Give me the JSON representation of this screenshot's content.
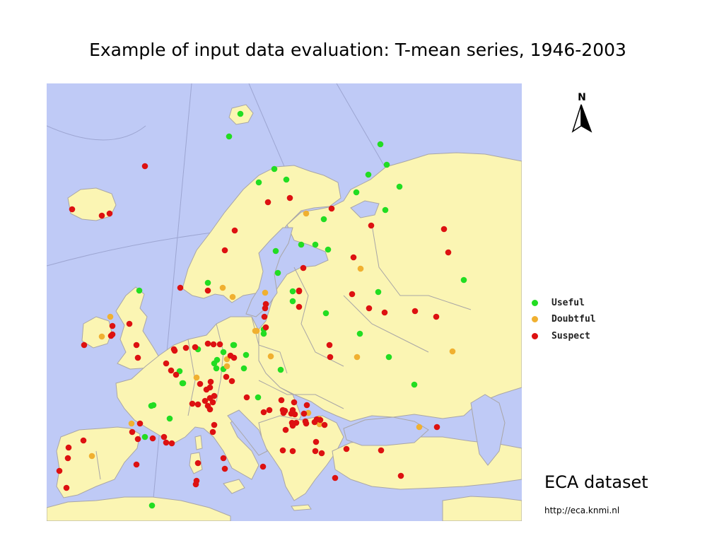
{
  "title": "Example of input data evaluation: T-mean series, 1946-2003",
  "north_label": "N",
  "legend": [
    {
      "label": "Useful",
      "color": "#22dd22"
    },
    {
      "label": "Doubtful",
      "color": "#f0b030"
    },
    {
      "label": "Suspect",
      "color": "#dd1111"
    }
  ],
  "dataset_label": "ECA dataset",
  "dataset_url": "http://eca.knmi.nl",
  "colors": {
    "sea": "#bfcaf6",
    "land": "#fbf5b3",
    "border": "#a9a6a6",
    "useful": "#22dd22",
    "doubtful": "#f0b030",
    "suspect": "#dd1111"
  },
  "stations": {
    "useful": [
      [
        274,
        43
      ],
      [
        258,
        75
      ],
      [
        322,
        121
      ],
      [
        300,
        140
      ],
      [
        339,
        136
      ],
      [
        472,
        86
      ],
      [
        481,
        115
      ],
      [
        455,
        129
      ],
      [
        438,
        154
      ],
      [
        499,
        146
      ],
      [
        479,
        179
      ],
      [
        392,
        192
      ],
      [
        324,
        237
      ],
      [
        360,
        228
      ],
      [
        380,
        228
      ],
      [
        398,
        235
      ],
      [
        327,
        268
      ],
      [
        131,
        293
      ],
      [
        228,
        282
      ],
      [
        348,
        294
      ],
      [
        348,
        308
      ],
      [
        395,
        325
      ],
      [
        307,
        348
      ],
      [
        307,
        354
      ],
      [
        469,
        295
      ],
      [
        443,
        354
      ],
      [
        590,
        278
      ],
      [
        264,
        370
      ],
      [
        250,
        380
      ],
      [
        282,
        384
      ],
      [
        214,
        376
      ],
      [
        240,
        403
      ],
      [
        250,
        404
      ],
      [
        265,
        370
      ],
      [
        241,
        391
      ],
      [
        237,
        396
      ],
      [
        192,
        424
      ],
      [
        188,
        407
      ],
      [
        193,
        424
      ],
      [
        279,
        403
      ],
      [
        299,
        444
      ],
      [
        331,
        405
      ],
      [
        484,
        387
      ],
      [
        520,
        426
      ],
      [
        148,
        456
      ],
      [
        151,
        455
      ],
      [
        174,
        474
      ],
      [
        139,
        500
      ],
      [
        149,
        597
      ]
    ],
    "doubtful": [
      [
        367,
        184
      ],
      [
        444,
        262
      ],
      [
        249,
        289
      ],
      [
        263,
        302
      ],
      [
        309,
        296
      ],
      [
        90,
        330
      ],
      [
        78,
        358
      ],
      [
        297,
        350
      ],
      [
        255,
        390
      ],
      [
        317,
        386
      ],
      [
        439,
        387
      ],
      [
        212,
        416
      ],
      [
        255,
        400
      ],
      [
        370,
        466
      ],
      [
        385,
        474
      ],
      [
        386,
        482
      ],
      [
        527,
        486
      ],
      [
        574,
        379
      ],
      [
        120,
        481
      ],
      [
        64,
        527
      ],
      [
        295,
        350
      ]
    ],
    "suspect": [
      [
        139,
        117
      ],
      [
        36,
        178
      ],
      [
        78,
        187
      ],
      [
        89,
        184
      ],
      [
        313,
        168
      ],
      [
        344,
        162
      ],
      [
        403,
        177
      ],
      [
        459,
        201
      ],
      [
        266,
        208
      ],
      [
        252,
        236
      ],
      [
        363,
        261
      ],
      [
        434,
        246
      ],
      [
        432,
        298
      ],
      [
        456,
        318
      ],
      [
        478,
        324
      ],
      [
        521,
        322
      ],
      [
        551,
        330
      ],
      [
        562,
        206
      ],
      [
        568,
        239
      ],
      [
        189,
        289
      ],
      [
        228,
        293
      ],
      [
        357,
        294
      ],
      [
        357,
        316
      ],
      [
        310,
        312
      ],
      [
        308,
        330
      ],
      [
        310,
        345
      ],
      [
        357,
        293
      ],
      [
        309,
        318
      ],
      [
        93,
        343
      ],
      [
        93,
        355
      ],
      [
        91,
        357
      ],
      [
        117,
        340
      ],
      [
        53,
        370
      ],
      [
        127,
        370
      ],
      [
        129,
        388
      ],
      [
        180,
        376
      ],
      [
        197,
        374
      ],
      [
        210,
        373
      ],
      [
        228,
        368
      ],
      [
        236,
        369
      ],
      [
        245,
        369
      ],
      [
        181,
        378
      ],
      [
        169,
        396
      ],
      [
        176,
        406
      ],
      [
        183,
        412
      ],
      [
        260,
        385
      ],
      [
        265,
        388
      ],
      [
        254,
        415
      ],
      [
        217,
        425
      ],
      [
        232,
        422
      ],
      [
        231,
        430
      ],
      [
        224,
        449
      ],
      [
        206,
        453
      ],
      [
        214,
        454
      ],
      [
        226,
        433
      ],
      [
        237,
        442
      ],
      [
        235,
        451
      ],
      [
        231,
        445
      ],
      [
        228,
        456
      ],
      [
        231,
        461
      ],
      [
        262,
        421
      ],
      [
        283,
        444
      ],
      [
        307,
        465
      ],
      [
        368,
        455
      ],
      [
        401,
        387
      ],
      [
        400,
        370
      ],
      [
        335,
        466
      ],
      [
        337,
        463
      ],
      [
        346,
        467
      ],
      [
        351,
        468
      ],
      [
        353,
        480
      ],
      [
        367,
        481
      ],
      [
        387,
        476
      ],
      [
        393,
        483
      ],
      [
        381,
        507
      ],
      [
        380,
        520
      ],
      [
        382,
        475
      ],
      [
        338,
        490
      ],
      [
        334,
        462
      ],
      [
        315,
        462
      ],
      [
        347,
        480
      ],
      [
        348,
        484
      ],
      [
        332,
        448
      ],
      [
        350,
        451
      ],
      [
        348,
        462
      ],
      [
        364,
        467
      ],
      [
        366,
        478
      ],
      [
        379,
        479
      ],
      [
        473,
        519
      ],
      [
        424,
        517
      ],
      [
        501,
        555
      ],
      [
        552,
        486
      ],
      [
        235,
        493
      ],
      [
        237,
        483
      ],
      [
        150,
        502
      ],
      [
        129,
        503
      ],
      [
        121,
        493
      ],
      [
        52,
        505
      ],
      [
        127,
        539
      ],
      [
        177,
        509
      ],
      [
        214,
        537
      ],
      [
        211,
        567
      ],
      [
        250,
        530
      ],
      [
        252,
        545
      ],
      [
        306,
        542
      ],
      [
        334,
        519
      ],
      [
        348,
        520
      ],
      [
        389,
        523
      ],
      [
        408,
        558
      ],
      [
        31,
        515
      ],
      [
        30,
        530
      ],
      [
        18,
        548
      ],
      [
        28,
        572
      ],
      [
        212,
        562
      ],
      [
        132,
        481
      ],
      [
        166,
        500
      ],
      [
        169,
        508
      ]
    ]
  }
}
